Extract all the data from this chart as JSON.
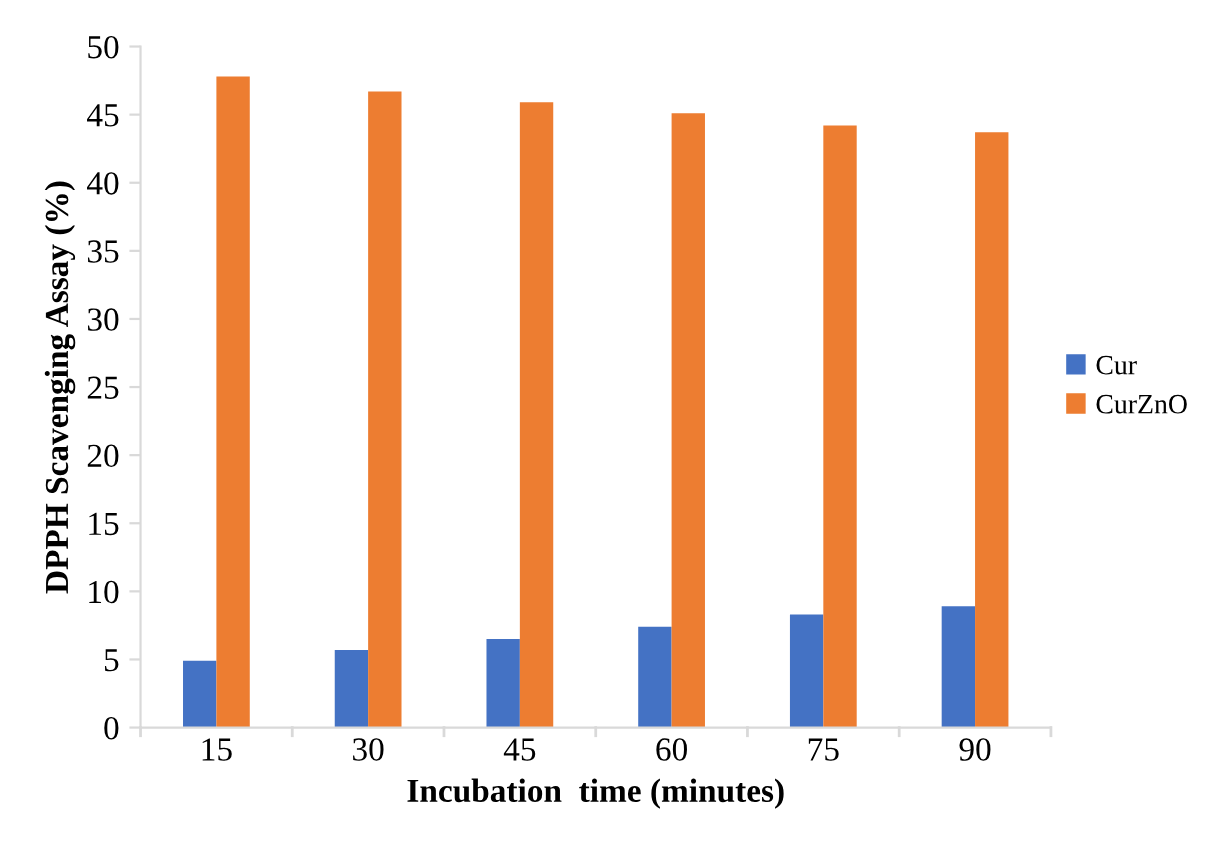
{
  "chart_data": {
    "type": "bar",
    "xlabel": "Incubation  time (minutes)",
    "ylabel": "DPPH Scavenging Assay (%)",
    "categories": [
      "15",
      "30",
      "45",
      "60",
      "75",
      "90"
    ],
    "series": [
      {
        "name": "Cur",
        "color": "#4472c4",
        "values": [
          4.9,
          5.7,
          6.5,
          7.4,
          8.3,
          8.9
        ]
      },
      {
        "name": "CurZnO",
        "color": "#ed7d31",
        "values": [
          47.8,
          46.7,
          45.9,
          45.1,
          44.2,
          43.7
        ]
      }
    ],
    "ylim": [
      0,
      50
    ],
    "yticks": [
      0,
      5,
      10,
      15,
      20,
      25,
      30,
      35,
      40,
      45,
      50
    ],
    "grid": false,
    "legend": "right"
  }
}
